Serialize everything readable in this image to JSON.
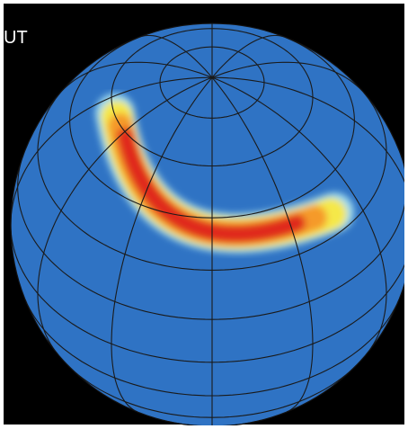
{
  "label": "UT"
}
